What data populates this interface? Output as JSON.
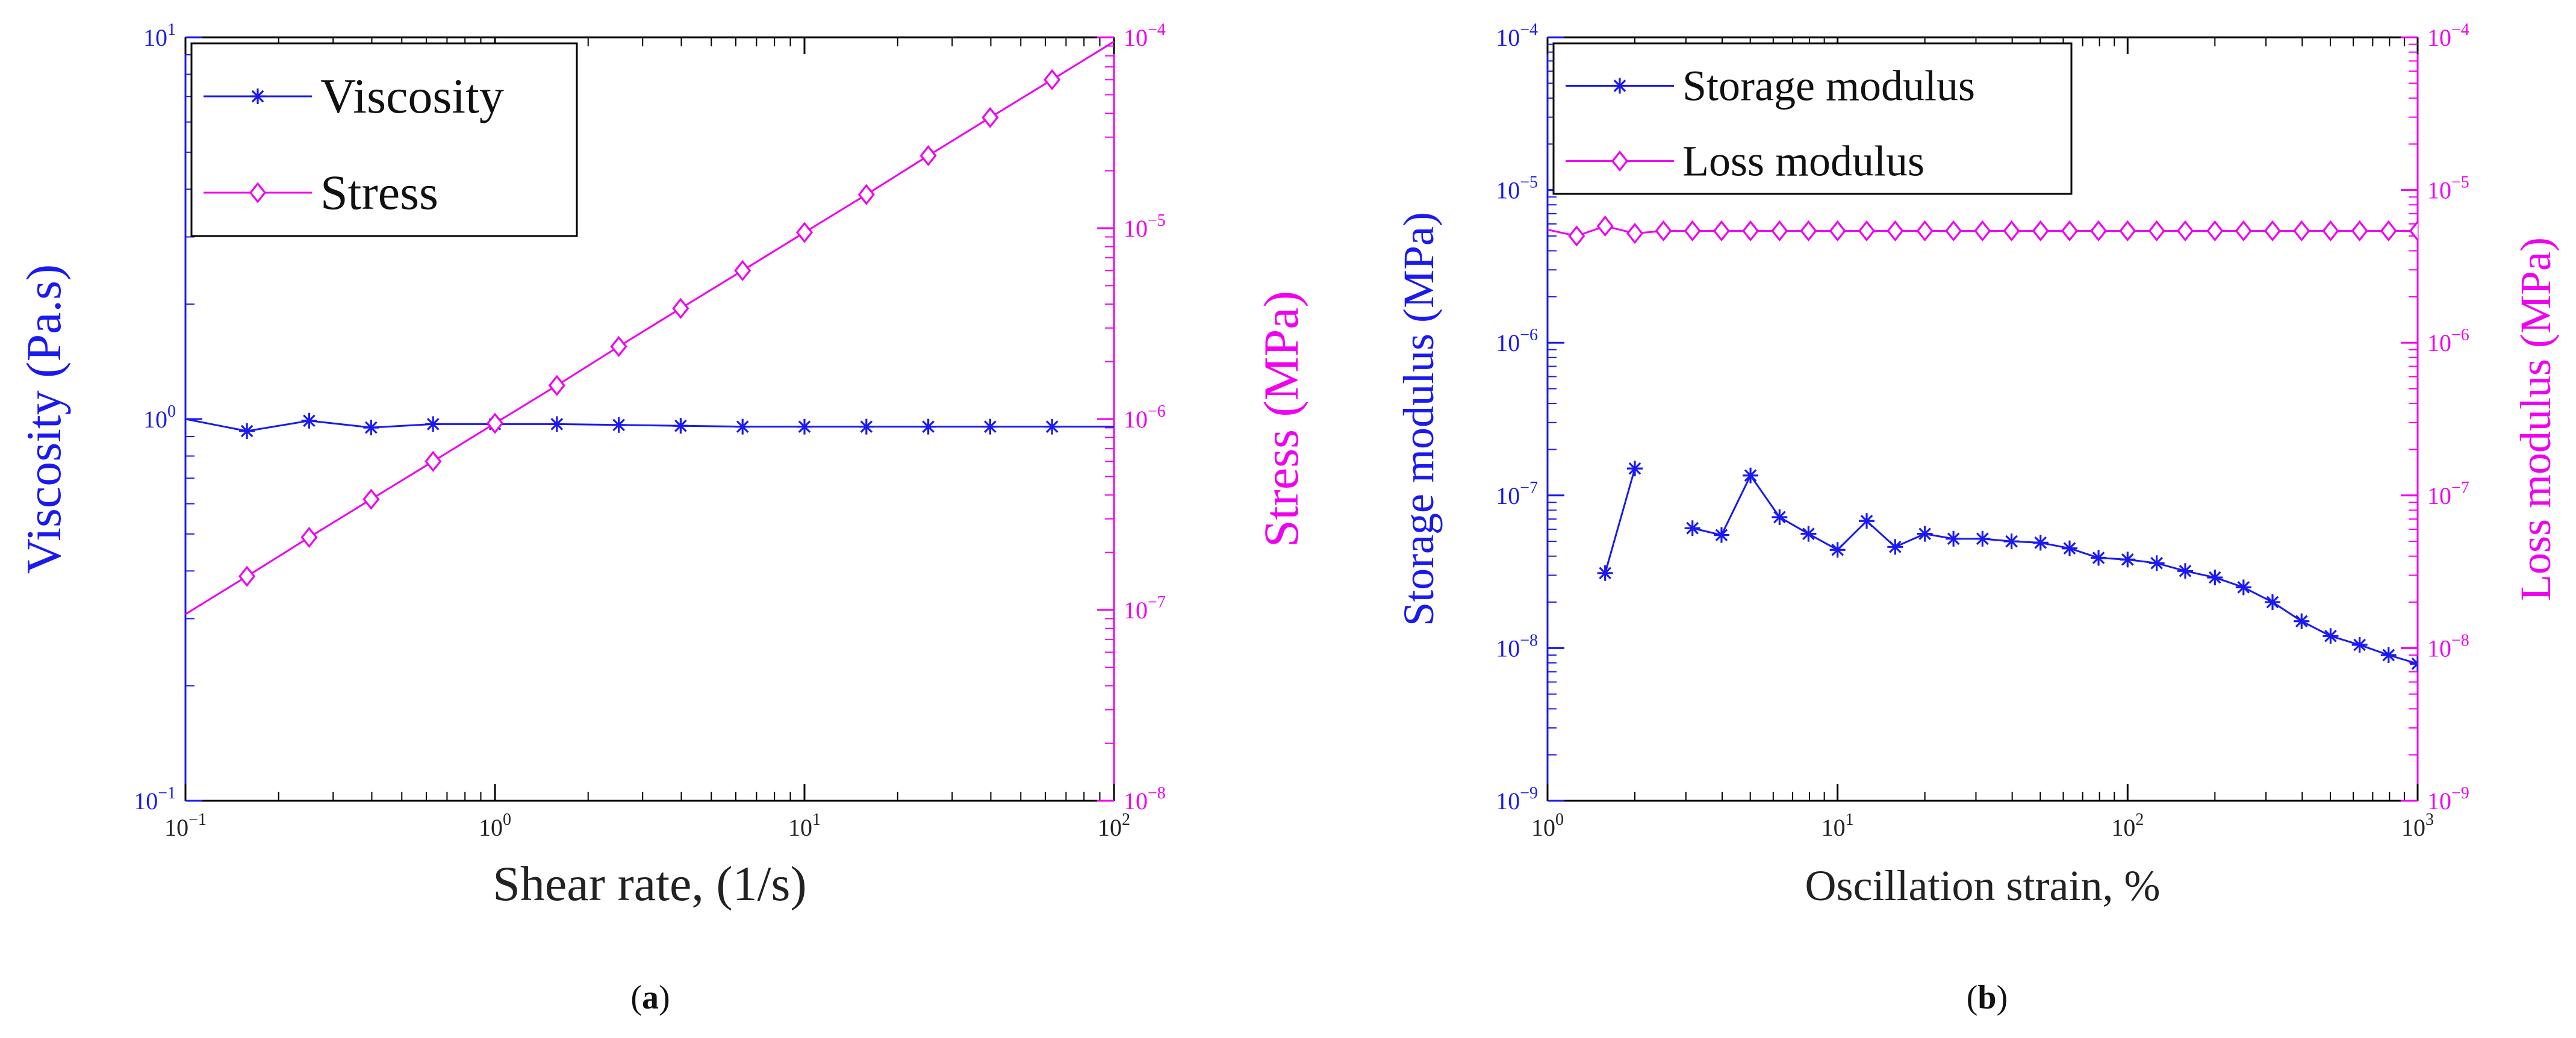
{
  "colors": {
    "blue": "#1a1af0",
    "magenta": "#f000f0",
    "frame": "#000000"
  },
  "chart_data": [
    {
      "type": "line",
      "panel_label": "a",
      "x_scale": "log",
      "xlim": [
        0.1,
        100
      ],
      "xlabel": "Shear rate, (1/s)",
      "x_ticks": [
        "10",
        "10",
        "10",
        "10"
      ],
      "x_tick_exponents": [
        "−1",
        "0",
        "1",
        "2"
      ],
      "y_left": {
        "label": "Viscosity (Pa.s)",
        "scale": "log",
        "lim": [
          0.1,
          10
        ],
        "ticks": [
          "10",
          "10",
          "10"
        ],
        "tick_exponents": [
          "−1",
          "0",
          "1"
        ]
      },
      "y_right": {
        "label": "Stress (MPa)",
        "scale": "log",
        "lim": [
          1e-08,
          0.0001
        ],
        "ticks": [
          "10",
          "10",
          "10",
          "10",
          "10"
        ],
        "tick_exponents": [
          "−8",
          "−7",
          "−6",
          "−5",
          "−4"
        ]
      },
      "legend": {
        "position": "top-left",
        "entries": [
          "Viscosity",
          "Stress"
        ]
      },
      "series": [
        {
          "name": "Viscosity",
          "axis": "left",
          "marker": "asterisk",
          "color": "#1a1af0",
          "x": [
            0.1,
            0.158,
            0.251,
            0.398,
            0.631,
            1,
            1.585,
            2.512,
            3.981,
            6.31,
            10,
            15.85,
            25.12,
            39.81,
            63.1,
            100
          ],
          "y": [
            1.0,
            0.93,
            0.99,
            0.95,
            0.97,
            0.97,
            0.97,
            0.965,
            0.96,
            0.955,
            0.955,
            0.955,
            0.955,
            0.955,
            0.955,
            0.955
          ],
          "markers_at": [
            0.158,
            0.251,
            0.398,
            0.631,
            1,
            1.585,
            2.512,
            3.981,
            6.31,
            10,
            15.85,
            25.12,
            39.81,
            63.1
          ]
        },
        {
          "name": "Stress",
          "axis": "right",
          "marker": "diamond",
          "color": "#f000f0",
          "x": [
            0.1,
            0.158,
            0.251,
            0.398,
            0.631,
            1,
            1.585,
            2.512,
            3.981,
            6.31,
            10,
            15.85,
            25.12,
            39.81,
            63.1,
            100
          ],
          "y": [
            9.5e-08,
            1.5e-07,
            2.4e-07,
            3.8e-07,
            6e-07,
            9.5e-07,
            1.5e-06,
            2.4e-06,
            3.8e-06,
            6e-06,
            9.5e-06,
            1.5e-05,
            2.4e-05,
            3.8e-05,
            6e-05,
            9.5e-05
          ],
          "markers_at": [
            0.158,
            0.251,
            0.398,
            0.631,
            1,
            1.585,
            2.512,
            3.981,
            6.31,
            10,
            15.85,
            25.12,
            39.81,
            63.1
          ]
        }
      ]
    },
    {
      "type": "line",
      "panel_label": "b",
      "x_scale": "log",
      "xlim": [
        1,
        1000
      ],
      "xlabel": "Oscillation strain, %",
      "x_ticks": [
        "10",
        "10",
        "10",
        "10"
      ],
      "x_tick_exponents": [
        "0",
        "1",
        "2",
        "3"
      ],
      "y_left": {
        "label": "Storage modulus (MPa)",
        "scale": "log",
        "lim": [
          1e-09,
          0.0001
        ],
        "ticks": [
          "10",
          "10",
          "10",
          "10",
          "10",
          "10"
        ],
        "tick_exponents": [
          "−9",
          "−8",
          "−7",
          "−6",
          "−5",
          "−4"
        ]
      },
      "y_right": {
        "label": "Loss modulus (MPa)",
        "scale": "log",
        "lim": [
          1e-09,
          0.0001
        ],
        "ticks": [
          "10",
          "10",
          "10",
          "10",
          "10",
          "10"
        ],
        "tick_exponents": [
          "−9",
          "−8",
          "−7",
          "−6",
          "−5",
          "−4"
        ]
      },
      "legend": {
        "position": "top-left",
        "entries": [
          "Storage modulus",
          "Loss modulus"
        ]
      },
      "series": [
        {
          "name": "Storage modulus",
          "axis": "left",
          "marker": "asterisk",
          "color": "#1a1af0",
          "segments": [
            {
              "x": [
                1.58,
                2.0
              ],
              "y": [
                3.1e-08,
                1.5e-07
              ]
            },
            {
              "x": [
                3.16,
                3.98,
                5.01,
                6.31,
                7.94,
                10.0,
                12.6,
                15.8,
                20.0,
                25.1,
                31.6,
                39.8,
                50.1,
                63.1,
                79.4,
                100,
                126,
                158,
                200,
                251,
                316,
                398,
                501,
                631,
                794,
                1000
              ],
              "y": [
                6.1e-08,
                5.5e-08,
                1.35e-07,
                7.2e-08,
                5.6e-08,
                4.4e-08,
                6.8e-08,
                4.6e-08,
                5.6e-08,
                5.2e-08,
                5.2e-08,
                5e-08,
                4.9e-08,
                4.5e-08,
                3.9e-08,
                3.8e-08,
                3.6e-08,
                3.2e-08,
                2.9e-08,
                2.5e-08,
                2e-08,
                1.5e-08,
                1.2e-08,
                1.05e-08,
                9e-09,
                7.9e-09
              ]
            }
          ]
        },
        {
          "name": "Loss modulus",
          "axis": "right",
          "marker": "diamond",
          "color": "#f000f0",
          "x": [
            1,
            1.26,
            1.58,
            2.0,
            2.51,
            3.16,
            3.98,
            5.01,
            6.31,
            7.94,
            10.0,
            12.6,
            15.8,
            20.0,
            25.1,
            31.6,
            39.8,
            50.1,
            63.1,
            79.4,
            100,
            126,
            158,
            200,
            251,
            316,
            398,
            501,
            631,
            794,
            1000
          ],
          "y": [
            5.5e-06,
            5e-06,
            5.8e-06,
            5.2e-06,
            5.4e-06,
            5.4e-06,
            5.4e-06,
            5.4e-06,
            5.4e-06,
            5.4e-06,
            5.4e-06,
            5.4e-06,
            5.4e-06,
            5.4e-06,
            5.4e-06,
            5.4e-06,
            5.4e-06,
            5.4e-06,
            5.4e-06,
            5.4e-06,
            5.4e-06,
            5.4e-06,
            5.4e-06,
            5.4e-06,
            5.4e-06,
            5.4e-06,
            5.4e-06,
            5.4e-06,
            5.4e-06,
            5.4e-06,
            5.4e-06
          ],
          "markers_from": 1.26
        }
      ]
    }
  ]
}
